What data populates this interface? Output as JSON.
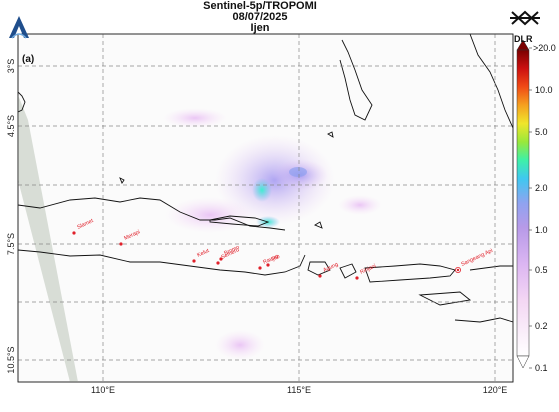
{
  "header": {
    "line1": "Sentinel-5p/TROPOMI",
    "line2": "08/07/2025",
    "line3": "Ijen"
  },
  "panel_label": "(a)",
  "logos": {
    "left": "satellite-agency-logo",
    "right": "dlr-logo",
    "right_text": "DLR"
  },
  "map": {
    "lon_range": [
      107.5,
      120.5
    ],
    "lat_range": [
      -11.3,
      -2.5
    ],
    "grid": "dashed",
    "lon_ticks": [
      {
        "value": 110,
        "label": "110°E"
      },
      {
        "value": 115,
        "label": "115°E"
      },
      {
        "value": 120,
        "label": "120°E"
      }
    ],
    "lat_ticks": [
      {
        "value": -3,
        "label": "3°S"
      },
      {
        "value": -4.5,
        "label": "4.5°S"
      },
      {
        "value": -6,
        "label": ""
      },
      {
        "value": -7.5,
        "label": "7.5°S"
      },
      {
        "value": -9,
        "label": ""
      },
      {
        "value": -10.5,
        "label": "10.5°S"
      }
    ],
    "volcanoes": [
      {
        "name": "Slamet"
      },
      {
        "name": "Merapi"
      },
      {
        "name": "Kelut"
      },
      {
        "name": "Semeru"
      },
      {
        "name": "Bromo"
      },
      {
        "name": "Raung"
      },
      {
        "name": "Ijen"
      },
      {
        "name": "Agung"
      },
      {
        "name": "Rinjani"
      },
      {
        "name": "Sangeang Api"
      }
    ]
  },
  "colorbar": {
    "colors": [
      "#ffffff",
      "#f4d7f4",
      "#dcb6f2",
      "#b79ae8",
      "#8fa3f0",
      "#3fc8f0",
      "#3ef0a8",
      "#9ae83a",
      "#f0e62a",
      "#f5a020",
      "#f04a16",
      "#cc1010",
      "#7a0000"
    ],
    "labels": [
      ">20.0",
      "10.0",
      "5.0",
      "2.0",
      "1.0",
      "0.5",
      "0.2",
      "0.1"
    ]
  }
}
